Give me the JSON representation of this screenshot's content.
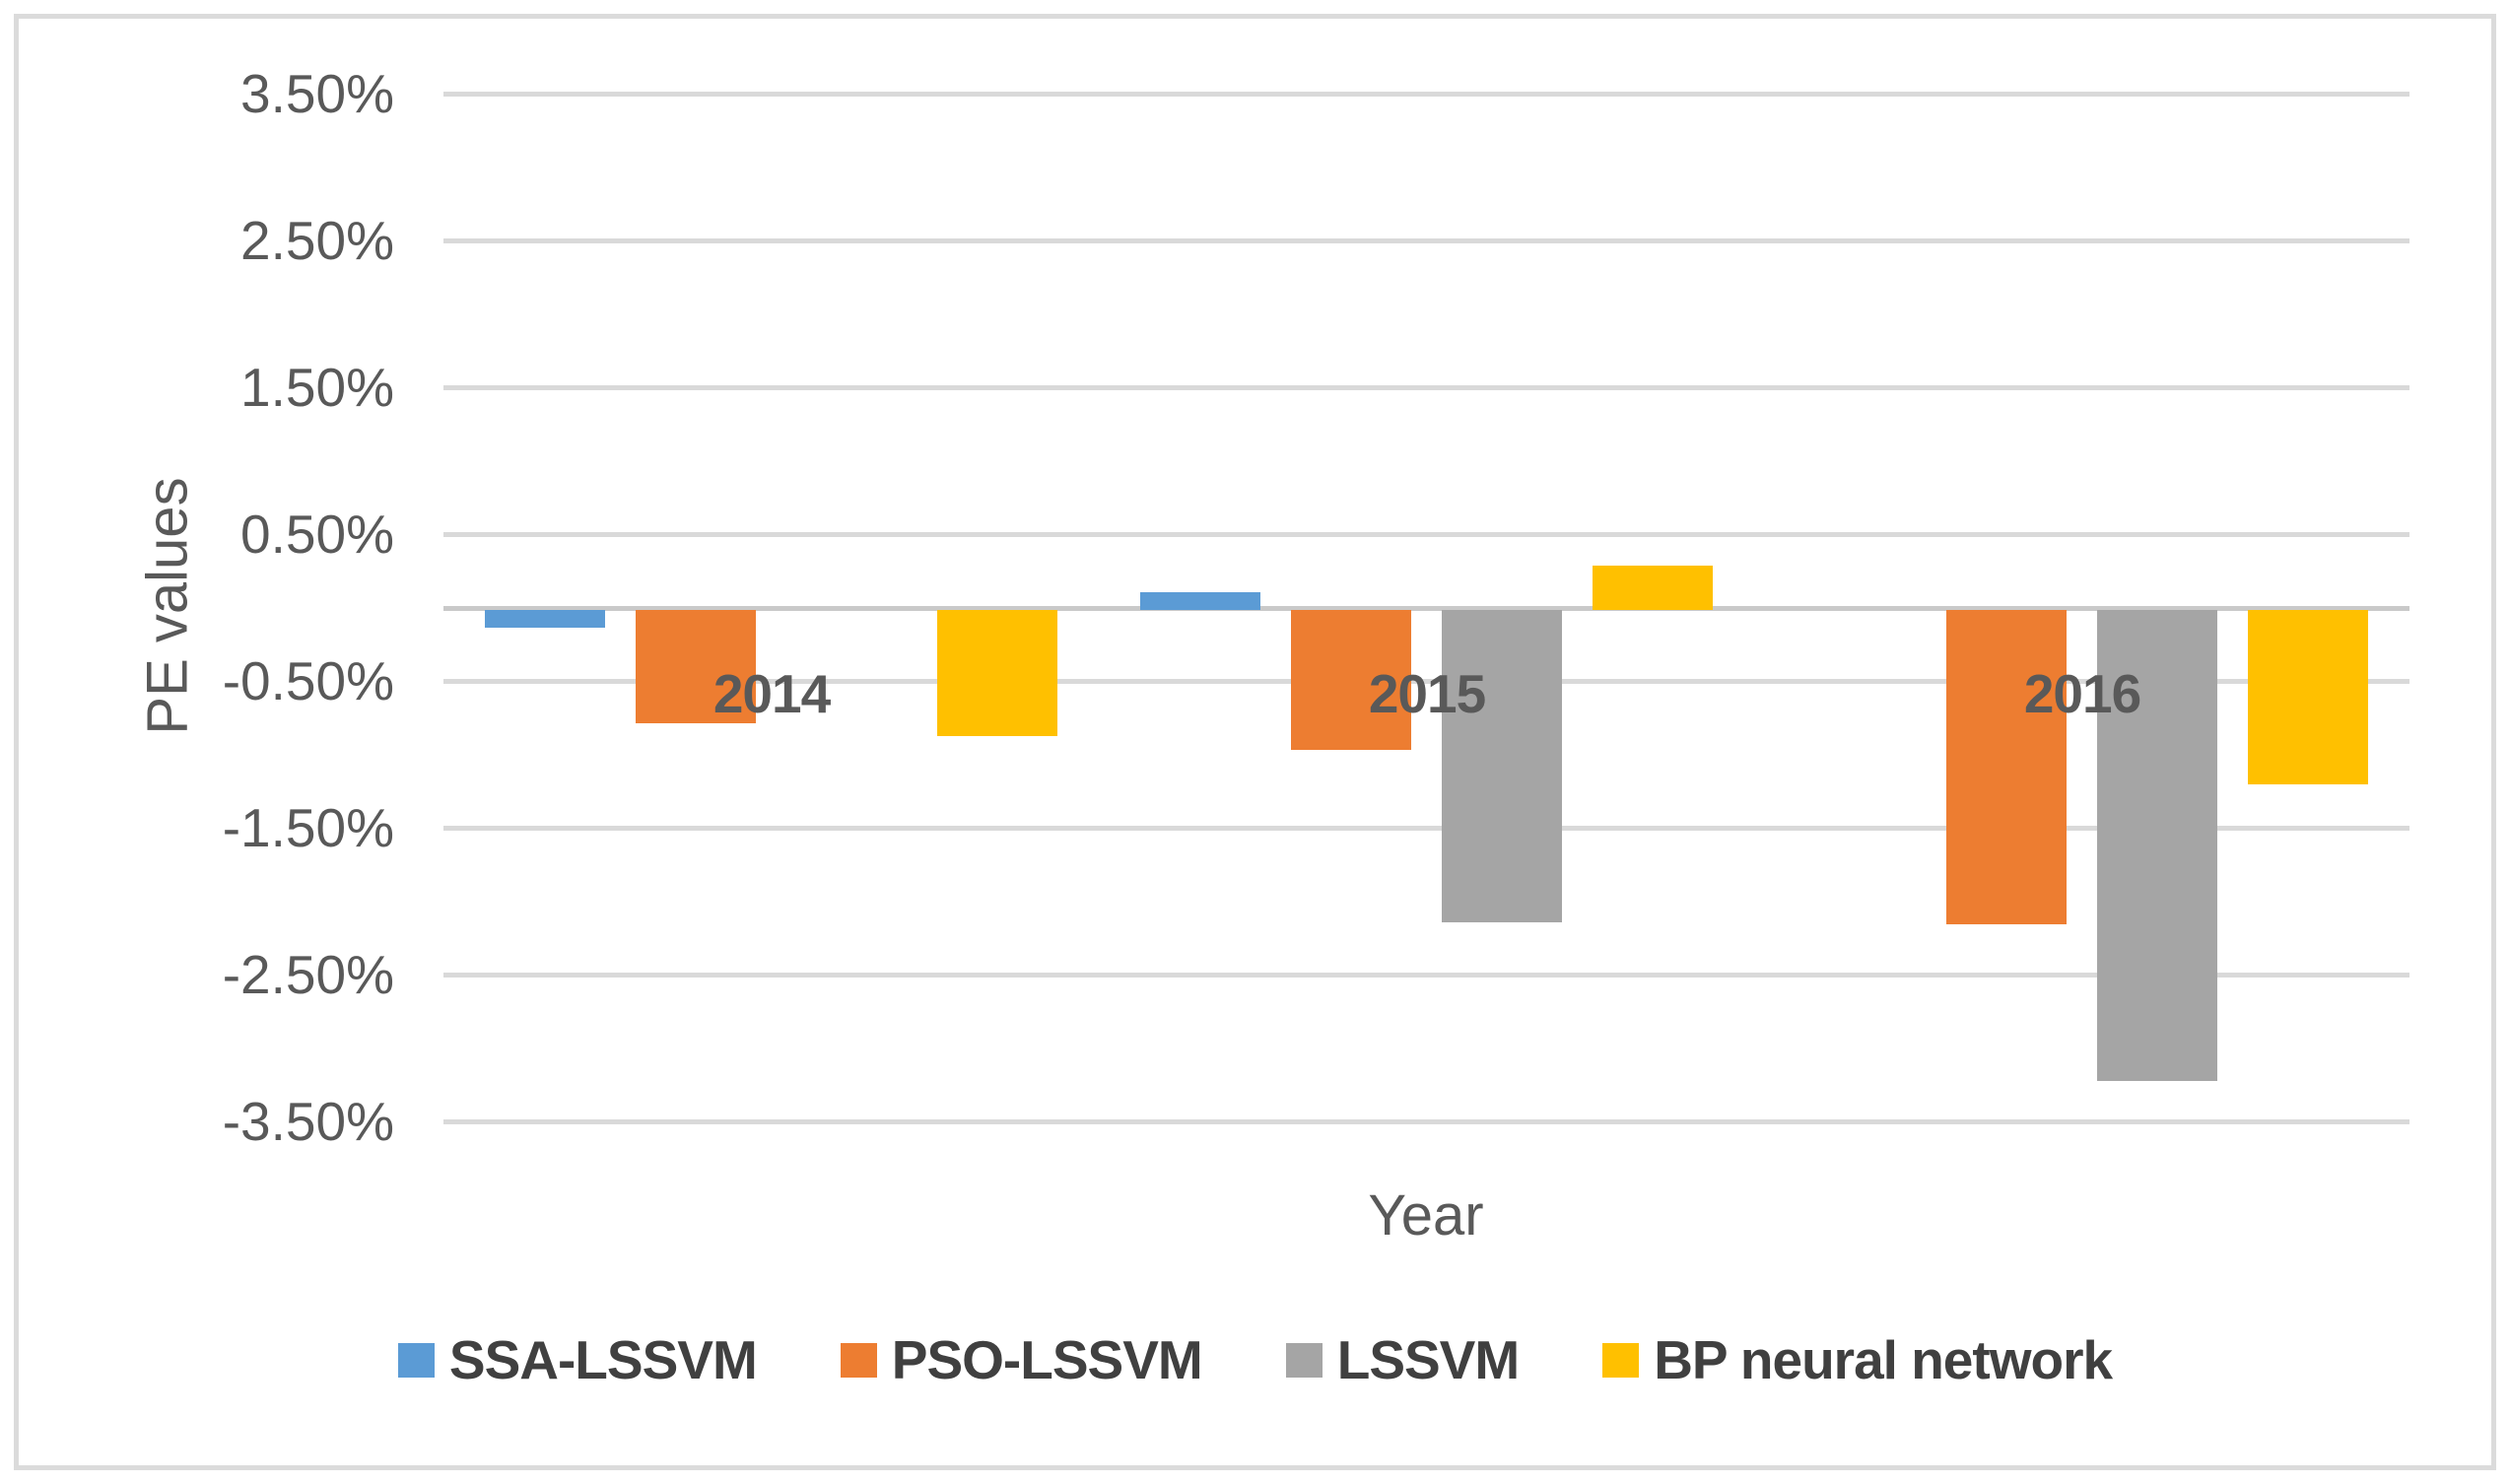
{
  "chart_data": {
    "type": "bar",
    "title": "",
    "xlabel": "Year",
    "ylabel": "PE values",
    "units": "%",
    "categories": [
      "2014",
      "2015",
      "2016"
    ],
    "series": [
      {
        "name": "SSA-LSSVM",
        "color": "#5b9bd5",
        "values": [
          -0.12,
          0.12,
          0.0
        ]
      },
      {
        "name": "PSO-LSSVM",
        "color": "#ed7d31",
        "values": [
          -0.77,
          -0.95,
          -2.14
        ]
      },
      {
        "name": "LSSVM",
        "color": "#a5a5a5",
        "values": [
          0.0,
          -2.13,
          -3.21
        ]
      },
      {
        "name": "BP neural network",
        "color": "#ffc000",
        "values": [
          -0.86,
          0.3,
          -1.19
        ]
      }
    ],
    "y_ticks": [
      "3.50%",
      "2.50%",
      "1.50%",
      "0.50%",
      "-0.50%",
      "-1.50%",
      "-2.50%",
      "-3.50%"
    ],
    "ylim": [
      -3.5,
      3.5
    ],
    "grid": true,
    "gridline_color": "#d9d9d9",
    "axis_line_color": "#c9c9c9",
    "text_color": "#595959",
    "legend_text_color": "#404040",
    "legend_position": "bottom"
  }
}
